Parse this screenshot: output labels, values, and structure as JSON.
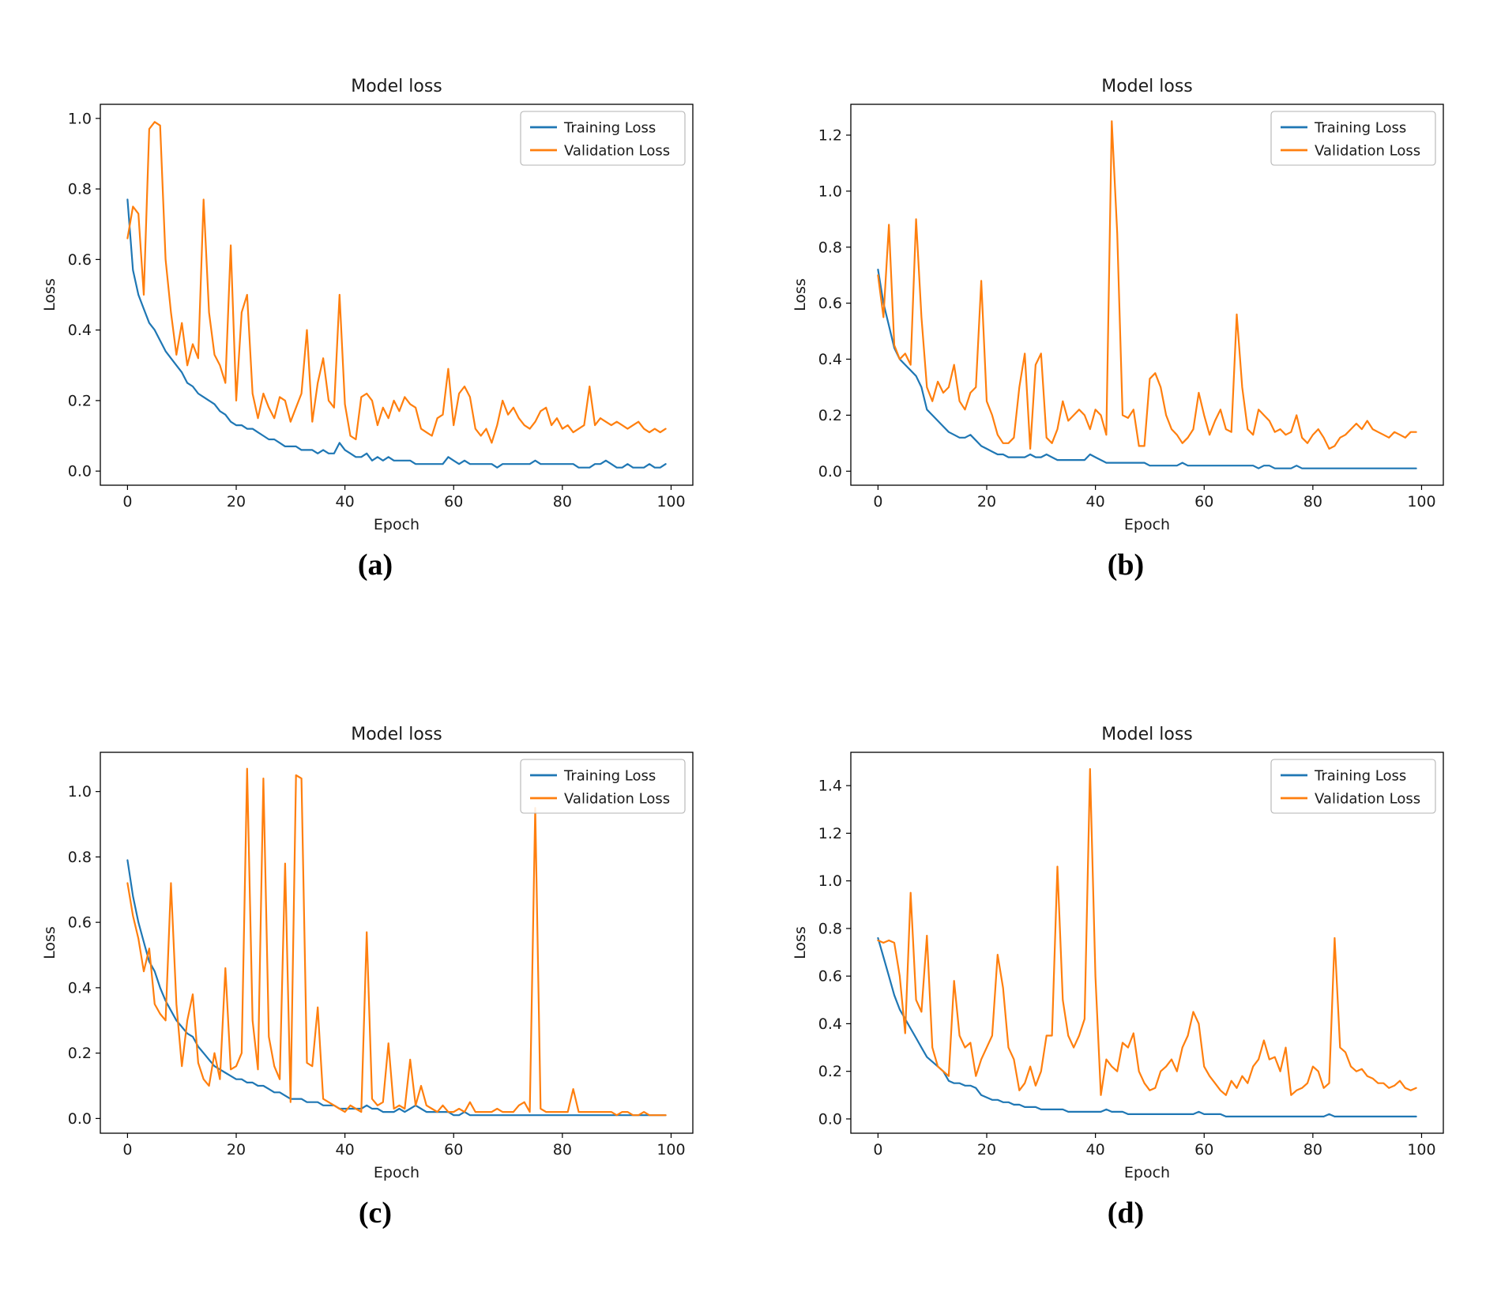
{
  "colors": {
    "training": "#1f77b4",
    "validation": "#ff7f0e",
    "text": "#1a1a1a",
    "legend_border": "#b3b3b3"
  },
  "captions": [
    "(a)",
    "(b)",
    "(c)",
    "(d)"
  ],
  "chart_data": [
    {
      "type": "line",
      "title": "Model loss",
      "xlabel": "Epoch",
      "ylabel": "Loss",
      "caption": "(a)",
      "x_start": 0,
      "x_step": 1,
      "xlim": [
        -5,
        104
      ],
      "ylim": [
        -0.04,
        1.04
      ],
      "xticks": [
        0,
        20,
        40,
        60,
        80,
        100
      ],
      "yticks": [
        0.0,
        0.2,
        0.4,
        0.6,
        0.8,
        1.0
      ],
      "grid": false,
      "legend_position": "upper right",
      "series": [
        {
          "name": "Training Loss",
          "color": "#1f77b4",
          "values": [
            0.77,
            0.57,
            0.5,
            0.46,
            0.42,
            0.4,
            0.37,
            0.34,
            0.32,
            0.3,
            0.28,
            0.25,
            0.24,
            0.22,
            0.21,
            0.2,
            0.19,
            0.17,
            0.16,
            0.14,
            0.13,
            0.13,
            0.12,
            0.12,
            0.11,
            0.1,
            0.09,
            0.09,
            0.08,
            0.07,
            0.07,
            0.07,
            0.06,
            0.06,
            0.06,
            0.05,
            0.06,
            0.05,
            0.05,
            0.08,
            0.06,
            0.05,
            0.04,
            0.04,
            0.05,
            0.03,
            0.04,
            0.03,
            0.04,
            0.03,
            0.03,
            0.03,
            0.03,
            0.02,
            0.02,
            0.02,
            0.02,
            0.02,
            0.02,
            0.04,
            0.03,
            0.02,
            0.03,
            0.02,
            0.02,
            0.02,
            0.02,
            0.02,
            0.01,
            0.02,
            0.02,
            0.02,
            0.02,
            0.02,
            0.02,
            0.03,
            0.02,
            0.02,
            0.02,
            0.02,
            0.02,
            0.02,
            0.02,
            0.01,
            0.01,
            0.01,
            0.02,
            0.02,
            0.03,
            0.02,
            0.01,
            0.01,
            0.02,
            0.01,
            0.01,
            0.01,
            0.02,
            0.01,
            0.01,
            0.02
          ]
        },
        {
          "name": "Validation Loss",
          "color": "#ff7f0e",
          "values": [
            0.66,
            0.75,
            0.73,
            0.5,
            0.97,
            0.99,
            0.98,
            0.6,
            0.45,
            0.33,
            0.42,
            0.3,
            0.36,
            0.32,
            0.77,
            0.45,
            0.33,
            0.3,
            0.25,
            0.64,
            0.2,
            0.45,
            0.5,
            0.22,
            0.15,
            0.22,
            0.18,
            0.15,
            0.21,
            0.2,
            0.14,
            0.18,
            0.22,
            0.4,
            0.14,
            0.25,
            0.32,
            0.2,
            0.18,
            0.5,
            0.19,
            0.1,
            0.09,
            0.21,
            0.22,
            0.2,
            0.13,
            0.18,
            0.15,
            0.2,
            0.17,
            0.21,
            0.19,
            0.18,
            0.12,
            0.11,
            0.1,
            0.15,
            0.16,
            0.29,
            0.13,
            0.22,
            0.24,
            0.21,
            0.12,
            0.1,
            0.12,
            0.08,
            0.13,
            0.2,
            0.16,
            0.18,
            0.15,
            0.13,
            0.12,
            0.14,
            0.17,
            0.18,
            0.13,
            0.15,
            0.12,
            0.13,
            0.11,
            0.12,
            0.13,
            0.24,
            0.13,
            0.15,
            0.14,
            0.13,
            0.14,
            0.13,
            0.12,
            0.13,
            0.14,
            0.12,
            0.11,
            0.12,
            0.11,
            0.12
          ]
        }
      ]
    },
    {
      "type": "line",
      "title": "Model loss",
      "xlabel": "Epoch",
      "ylabel": "Loss",
      "caption": "(b)",
      "x_start": 0,
      "x_step": 1,
      "xlim": [
        -5,
        104
      ],
      "ylim": [
        -0.05,
        1.31
      ],
      "xticks": [
        0,
        20,
        40,
        60,
        80,
        100
      ],
      "yticks": [
        0.0,
        0.2,
        0.4,
        0.6,
        0.8,
        1.0,
        1.2
      ],
      "grid": false,
      "legend_position": "upper right",
      "series": [
        {
          "name": "Training Loss",
          "color": "#1f77b4",
          "values": [
            0.72,
            0.6,
            0.52,
            0.44,
            0.4,
            0.38,
            0.36,
            0.34,
            0.3,
            0.22,
            0.2,
            0.18,
            0.16,
            0.14,
            0.13,
            0.12,
            0.12,
            0.13,
            0.11,
            0.09,
            0.08,
            0.07,
            0.06,
            0.06,
            0.05,
            0.05,
            0.05,
            0.05,
            0.06,
            0.05,
            0.05,
            0.06,
            0.05,
            0.04,
            0.04,
            0.04,
            0.04,
            0.04,
            0.04,
            0.06,
            0.05,
            0.04,
            0.03,
            0.03,
            0.03,
            0.03,
            0.03,
            0.03,
            0.03,
            0.03,
            0.02,
            0.02,
            0.02,
            0.02,
            0.02,
            0.02,
            0.03,
            0.02,
            0.02,
            0.02,
            0.02,
            0.02,
            0.02,
            0.02,
            0.02,
            0.02,
            0.02,
            0.02,
            0.02,
            0.02,
            0.01,
            0.02,
            0.02,
            0.01,
            0.01,
            0.01,
            0.01,
            0.02,
            0.01,
            0.01,
            0.01,
            0.01,
            0.01,
            0.01,
            0.01,
            0.01,
            0.01,
            0.01,
            0.01,
            0.01,
            0.01,
            0.01,
            0.01,
            0.01,
            0.01,
            0.01,
            0.01,
            0.01,
            0.01,
            0.01
          ]
        },
        {
          "name": "Validation Loss",
          "color": "#ff7f0e",
          "values": [
            0.7,
            0.55,
            0.88,
            0.45,
            0.4,
            0.42,
            0.38,
            0.9,
            0.55,
            0.3,
            0.25,
            0.32,
            0.28,
            0.3,
            0.38,
            0.25,
            0.22,
            0.28,
            0.3,
            0.68,
            0.25,
            0.2,
            0.13,
            0.1,
            0.1,
            0.12,
            0.3,
            0.42,
            0.08,
            0.38,
            0.42,
            0.12,
            0.1,
            0.15,
            0.25,
            0.18,
            0.2,
            0.22,
            0.2,
            0.15,
            0.22,
            0.2,
            0.13,
            1.25,
            0.85,
            0.2,
            0.19,
            0.22,
            0.09,
            0.09,
            0.33,
            0.35,
            0.3,
            0.2,
            0.15,
            0.13,
            0.1,
            0.12,
            0.15,
            0.28,
            0.2,
            0.13,
            0.18,
            0.22,
            0.15,
            0.14,
            0.56,
            0.3,
            0.15,
            0.13,
            0.22,
            0.2,
            0.18,
            0.14,
            0.15,
            0.13,
            0.14,
            0.2,
            0.12,
            0.1,
            0.13,
            0.15,
            0.12,
            0.08,
            0.09,
            0.12,
            0.13,
            0.15,
            0.17,
            0.15,
            0.18,
            0.15,
            0.14,
            0.13,
            0.12,
            0.14,
            0.13,
            0.12,
            0.14,
            0.14
          ]
        }
      ]
    },
    {
      "type": "line",
      "title": "Model loss",
      "xlabel": "Epoch",
      "ylabel": "Loss",
      "caption": "(c)",
      "x_start": 0,
      "x_step": 1,
      "xlim": [
        -5,
        104
      ],
      "ylim": [
        -0.045,
        1.12
      ],
      "xticks": [
        0,
        20,
        40,
        60,
        80,
        100
      ],
      "yticks": [
        0.0,
        0.2,
        0.4,
        0.6,
        0.8,
        1.0
      ],
      "grid": false,
      "legend_position": "upper right",
      "series": [
        {
          "name": "Training Loss",
          "color": "#1f77b4",
          "values": [
            0.79,
            0.68,
            0.6,
            0.54,
            0.48,
            0.45,
            0.4,
            0.36,
            0.33,
            0.3,
            0.28,
            0.26,
            0.25,
            0.22,
            0.2,
            0.18,
            0.16,
            0.15,
            0.14,
            0.13,
            0.12,
            0.12,
            0.11,
            0.11,
            0.1,
            0.1,
            0.09,
            0.08,
            0.08,
            0.07,
            0.06,
            0.06,
            0.06,
            0.05,
            0.05,
            0.05,
            0.04,
            0.04,
            0.04,
            0.03,
            0.03,
            0.03,
            0.03,
            0.03,
            0.04,
            0.03,
            0.03,
            0.02,
            0.02,
            0.02,
            0.03,
            0.02,
            0.03,
            0.04,
            0.03,
            0.02,
            0.02,
            0.02,
            0.02,
            0.02,
            0.01,
            0.01,
            0.02,
            0.01,
            0.01,
            0.01,
            0.01,
            0.01,
            0.01,
            0.01,
            0.01,
            0.01,
            0.01,
            0.01,
            0.01,
            0.01,
            0.01,
            0.01,
            0.01,
            0.01,
            0.01,
            0.01,
            0.01,
            0.01,
            0.01,
            0.01,
            0.01,
            0.01,
            0.01,
            0.01,
            0.01,
            0.01,
            0.01,
            0.01,
            0.01,
            0.01,
            0.01,
            0.01,
            0.01,
            0.01
          ]
        },
        {
          "name": "Validation Loss",
          "color": "#ff7f0e",
          "values": [
            0.72,
            0.62,
            0.55,
            0.45,
            0.52,
            0.35,
            0.32,
            0.3,
            0.72,
            0.35,
            0.16,
            0.3,
            0.38,
            0.17,
            0.12,
            0.1,
            0.2,
            0.12,
            0.46,
            0.15,
            0.16,
            0.2,
            1.07,
            0.3,
            0.15,
            1.04,
            0.25,
            0.16,
            0.12,
            0.78,
            0.05,
            1.05,
            1.04,
            0.17,
            0.16,
            0.34,
            0.06,
            0.05,
            0.04,
            0.03,
            0.02,
            0.04,
            0.03,
            0.02,
            0.57,
            0.06,
            0.04,
            0.05,
            0.23,
            0.03,
            0.04,
            0.03,
            0.18,
            0.04,
            0.1,
            0.04,
            0.03,
            0.02,
            0.04,
            0.02,
            0.02,
            0.03,
            0.02,
            0.05,
            0.02,
            0.02,
            0.02,
            0.02,
            0.03,
            0.02,
            0.02,
            0.02,
            0.04,
            0.05,
            0.02,
            0.95,
            0.03,
            0.02,
            0.02,
            0.02,
            0.02,
            0.02,
            0.09,
            0.02,
            0.02,
            0.02,
            0.02,
            0.02,
            0.02,
            0.02,
            0.01,
            0.02,
            0.02,
            0.01,
            0.01,
            0.02,
            0.01,
            0.01,
            0.01,
            0.01
          ]
        }
      ]
    },
    {
      "type": "line",
      "title": "Model loss",
      "xlabel": "Epoch",
      "ylabel": "Loss",
      "caption": "(d)",
      "x_start": 0,
      "x_step": 1,
      "xlim": [
        -5,
        104
      ],
      "ylim": [
        -0.06,
        1.54
      ],
      "xticks": [
        0,
        20,
        40,
        60,
        80,
        100
      ],
      "yticks": [
        0.0,
        0.2,
        0.4,
        0.6,
        0.8,
        1.0,
        1.2,
        1.4
      ],
      "grid": false,
      "legend_position": "upper right",
      "series": [
        {
          "name": "Training Loss",
          "color": "#1f77b4",
          "values": [
            0.76,
            0.68,
            0.6,
            0.52,
            0.46,
            0.42,
            0.38,
            0.34,
            0.3,
            0.26,
            0.24,
            0.22,
            0.2,
            0.16,
            0.15,
            0.15,
            0.14,
            0.14,
            0.13,
            0.1,
            0.09,
            0.08,
            0.08,
            0.07,
            0.07,
            0.06,
            0.06,
            0.05,
            0.05,
            0.05,
            0.04,
            0.04,
            0.04,
            0.04,
            0.04,
            0.03,
            0.03,
            0.03,
            0.03,
            0.03,
            0.03,
            0.03,
            0.04,
            0.03,
            0.03,
            0.03,
            0.02,
            0.02,
            0.02,
            0.02,
            0.02,
            0.02,
            0.02,
            0.02,
            0.02,
            0.02,
            0.02,
            0.02,
            0.02,
            0.03,
            0.02,
            0.02,
            0.02,
            0.02,
            0.01,
            0.01,
            0.01,
            0.01,
            0.01,
            0.01,
            0.01,
            0.01,
            0.01,
            0.01,
            0.01,
            0.01,
            0.01,
            0.01,
            0.01,
            0.01,
            0.01,
            0.01,
            0.01,
            0.02,
            0.01,
            0.01,
            0.01,
            0.01,
            0.01,
            0.01,
            0.01,
            0.01,
            0.01,
            0.01,
            0.01,
            0.01,
            0.01,
            0.01,
            0.01,
            0.01
          ]
        },
        {
          "name": "Validation Loss",
          "color": "#ff7f0e",
          "values": [
            0.75,
            0.74,
            0.75,
            0.74,
            0.6,
            0.36,
            0.95,
            0.5,
            0.45,
            0.77,
            0.3,
            0.22,
            0.2,
            0.18,
            0.58,
            0.35,
            0.3,
            0.32,
            0.18,
            0.25,
            0.3,
            0.35,
            0.69,
            0.55,
            0.3,
            0.25,
            0.12,
            0.15,
            0.22,
            0.14,
            0.2,
            0.35,
            0.35,
            1.06,
            0.5,
            0.35,
            0.3,
            0.35,
            0.42,
            1.47,
            0.6,
            0.1,
            0.25,
            0.22,
            0.2,
            0.32,
            0.3,
            0.36,
            0.2,
            0.15,
            0.12,
            0.13,
            0.2,
            0.22,
            0.25,
            0.2,
            0.3,
            0.35,
            0.45,
            0.4,
            0.22,
            0.18,
            0.15,
            0.12,
            0.1,
            0.16,
            0.13,
            0.18,
            0.15,
            0.22,
            0.25,
            0.33,
            0.25,
            0.26,
            0.2,
            0.3,
            0.1,
            0.12,
            0.13,
            0.15,
            0.22,
            0.2,
            0.13,
            0.15,
            0.76,
            0.3,
            0.28,
            0.22,
            0.2,
            0.21,
            0.18,
            0.17,
            0.15,
            0.15,
            0.13,
            0.14,
            0.16,
            0.13,
            0.12,
            0.13
          ]
        }
      ]
    }
  ]
}
